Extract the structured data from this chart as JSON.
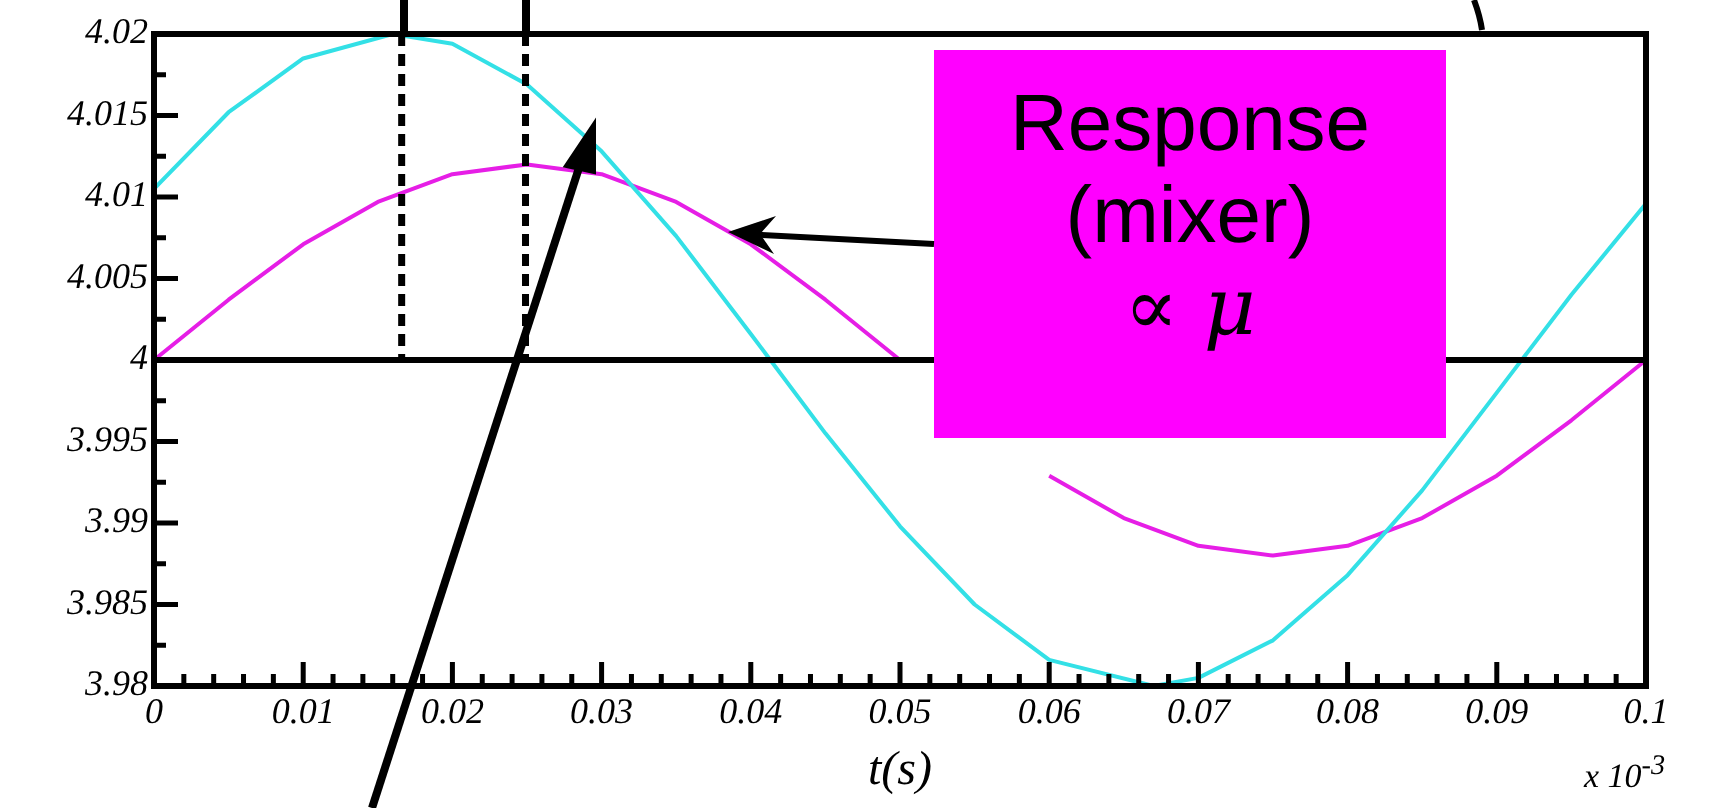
{
  "chart_data": {
    "type": "line",
    "xlabel": "t(s)",
    "annotations": [
      "Response (mixer) ∝ μ",
      "x 10$^{-3}$"
    ],
    "xlim": [
      0,
      0.1
    ],
    "ylim": [
      3.98,
      4.02
    ],
    "xticks": [
      0,
      {
        "value": 0.002,
        "label": null
      },
      {
        "value": 0.004,
        "label": null
      },
      {
        "value": 0.006,
        "label": null
      },
      {
        "value": 0.008,
        "label": null
      },
      0.01,
      {
        "value": 0.012,
        "label": null
      },
      {
        "value": 0.014,
        "label": null
      },
      {
        "value": 0.016,
        "label": null
      },
      {
        "value": 0.018,
        "label": null
      },
      0.02,
      {
        "value": 0.022,
        "label": null
      },
      {
        "value": 0.024,
        "label": null
      },
      {
        "value": 0.026,
        "label": null
      },
      {
        "value": 0.028,
        "label": null
      },
      0.03,
      {
        "value": 0.032,
        "label": null
      },
      {
        "value": 0.034,
        "label": null
      },
      {
        "value": 0.036,
        "label": null
      },
      {
        "value": 0.038,
        "label": null
      },
      0.04,
      {
        "value": 0.042,
        "label": null
      },
      {
        "value": 0.044,
        "label": null
      },
      {
        "value": 0.046,
        "label": null
      },
      {
        "value": 0.048,
        "label": null
      },
      0.05,
      {
        "value": 0.052,
        "label": null
      },
      {
        "value": 0.054,
        "label": null
      },
      {
        "value": 0.056,
        "label": null
      },
      {
        "value": 0.058,
        "label": null
      },
      0.06,
      {
        "value": 0.062,
        "label": null
      },
      {
        "value": 0.064,
        "label": null
      },
      {
        "value": 0.066,
        "label": null
      },
      {
        "value": 0.068,
        "label": null
      },
      0.07,
      {
        "value": 0.072,
        "label": null
      },
      {
        "value": 0.074,
        "label": null
      },
      {
        "value": 0.076,
        "label": null
      },
      {
        "value": 0.078,
        "label": null
      },
      0.08,
      {
        "value": 0.082,
        "label": null
      },
      {
        "value": 0.084,
        "label": null
      },
      {
        "value": 0.086,
        "label": null
      },
      {
        "value": 0.088,
        "label": null
      },
      0.09,
      {
        "value": 0.092,
        "label": null
      },
      {
        "value": 0.094,
        "label": null
      },
      {
        "value": 0.096,
        "label": null
      },
      {
        "value": 0.098,
        "label": null
      },
      0.1
    ],
    "yticks": [
      3.98,
      {
        "value": 3.9825,
        "label": null
      },
      3.985,
      {
        "value": 3.9875,
        "label": null
      },
      3.99,
      {
        "value": 3.9925,
        "label": null
      },
      3.995,
      {
        "value": 3.9975,
        "label": null
      },
      4,
      {
        "value": 4.0025,
        "label": null
      },
      4.005,
      {
        "value": 4.0075,
        "label": null
      },
      4.01,
      {
        "value": 4.0125,
        "label": null
      },
      4.015,
      {
        "value": 4.0175,
        "label": null
      },
      4.02
    ],
    "marker": "none",
    "line_style": "solid",
    "ref_lines": [
      {
        "axis": "y",
        "value": 4,
        "color": "#000000",
        "line_style": "solid"
      },
      {
        "axis": "x",
        "value": 0.0166,
        "color": "#000000",
        "line_style": "dashed"
      },
      {
        "axis": "x",
        "value": 0.0249,
        "color": "#000000",
        "line_style": "dashed"
      }
    ],
    "series": [
      {
        "color": "#33e0e6",
        "x": [
          0,
          0.005,
          0.01,
          0.016,
          0.02,
          0.025,
          0.03,
          0.035,
          0.04,
          0.045,
          0.05,
          0.055,
          0.06,
          0.067,
          0.07,
          0.075,
          0.08,
          0.085,
          0.09,
          0.095,
          0.1
        ],
        "values": [
          4.0105,
          4.0152,
          4.0185,
          4.02,
          4.0194,
          4.0169,
          4.0128,
          4.0076,
          4.0016,
          3.9955,
          3.9898,
          3.985,
          3.9816,
          3.98,
          3.9805,
          3.9828,
          3.9868,
          3.992,
          3.998,
          4.004,
          4.0096
        ]
      },
      {
        "color": "#e61ee6",
        "x": [
          0,
          0.005,
          0.01,
          0.015,
          0.02,
          0.025,
          0.03,
          0.035,
          0.04,
          0.045,
          0.05,
          0.055,
          0.06,
          0.065,
          0.07,
          0.075,
          0.08,
          0.085,
          0.09,
          0.095,
          0.1
        ],
        "values": [
          4,
          4.0037,
          4.0071,
          4.0097,
          4.0114,
          4.012,
          4.0114,
          4.0097,
          4.0071,
          4.0037,
          4,
          null,
          3.9929,
          3.9903,
          3.9886,
          3.988,
          3.9886,
          3.9903,
          3.9929,
          3.9963,
          4
        ]
      }
    ]
  }
}
